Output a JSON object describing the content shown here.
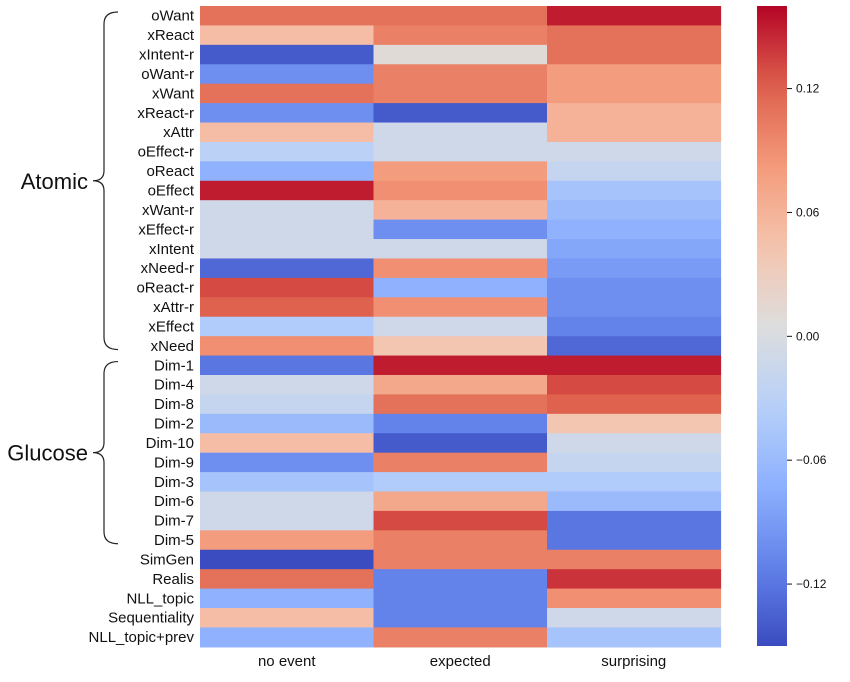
{
  "chart_data": {
    "type": "heatmap",
    "x_categories": [
      "no event",
      "expected",
      "surprising"
    ],
    "y_categories": [
      "oWant",
      "xReact",
      "xIntent-r",
      "oWant-r",
      "xWant",
      "xReact-r",
      "xAttr",
      "oEffect-r",
      "oReact",
      "oEffect",
      "xWant-r",
      "xEffect-r",
      "xIntent",
      "xNeed-r",
      "oReact-r",
      "xAttr-r",
      "xEffect",
      "xNeed",
      "Dim-1",
      "Dim-4",
      "Dim-8",
      "Dim-2",
      "Dim-10",
      "Dim-9",
      "Dim-3",
      "Dim-6",
      "Dim-7",
      "Dim-5",
      "SimGen",
      "Realis",
      "NLL_topic",
      "Sequentiality",
      "NLL_topic+prev"
    ],
    "values": [
      [
        0.11,
        0.11,
        0.15
      ],
      [
        0.05,
        0.1,
        0.11
      ],
      [
        -0.14,
        0.01,
        0.11
      ],
      [
        -0.1,
        0.1,
        0.08
      ],
      [
        0.11,
        0.1,
        0.08
      ],
      [
        -0.1,
        -0.14,
        0.06
      ],
      [
        0.05,
        -0.01,
        0.06
      ],
      [
        -0.03,
        -0.01,
        -0.01
      ],
      [
        -0.07,
        0.08,
        -0.02
      ],
      [
        0.15,
        0.09,
        -0.05
      ],
      [
        -0.01,
        0.06,
        -0.06
      ],
      [
        -0.01,
        -0.1,
        -0.07
      ],
      [
        -0.01,
        -0.01,
        -0.08
      ],
      [
        -0.13,
        0.09,
        -0.09
      ],
      [
        0.13,
        -0.07,
        -0.1
      ],
      [
        0.12,
        0.09,
        -0.1
      ],
      [
        -0.04,
        -0.01,
        -0.11
      ],
      [
        0.09,
        0.04,
        -0.13
      ],
      [
        -0.12,
        0.15,
        0.15
      ],
      [
        -0.01,
        0.07,
        0.13
      ],
      [
        -0.02,
        0.11,
        0.12
      ],
      [
        -0.06,
        -0.11,
        0.04
      ],
      [
        0.05,
        -0.14,
        -0.01
      ],
      [
        -0.1,
        0.1,
        -0.02
      ],
      [
        -0.05,
        -0.04,
        -0.04
      ],
      [
        -0.01,
        0.07,
        -0.06
      ],
      [
        -0.01,
        0.13,
        -0.12
      ],
      [
        0.08,
        0.1,
        -0.12
      ],
      [
        -0.15,
        0.1,
        0.1
      ],
      [
        0.11,
        -0.11,
        0.14
      ],
      [
        -0.07,
        -0.11,
        0.09
      ],
      [
        0.05,
        -0.11,
        -0.01
      ],
      [
        -0.07,
        0.1,
        -0.05
      ]
    ],
    "vmin": -0.15,
    "vmax": 0.16,
    "colormap": "coolwarm",
    "colorbar_ticks": [
      0.12,
      0.06,
      0.0,
      -0.06,
      -0.12
    ],
    "colorbar_tick_labels": [
      "0.12",
      "0.06",
      "0.00",
      "−0.06",
      "−0.12"
    ],
    "groups": [
      {
        "label": "Atomic",
        "start_row": "oWant",
        "end_row": "xNeed"
      },
      {
        "label": "Glucose",
        "start_row": "Dim-1",
        "end_row": "Dim-5"
      }
    ],
    "title": "",
    "xlabel": "",
    "ylabel": ""
  }
}
